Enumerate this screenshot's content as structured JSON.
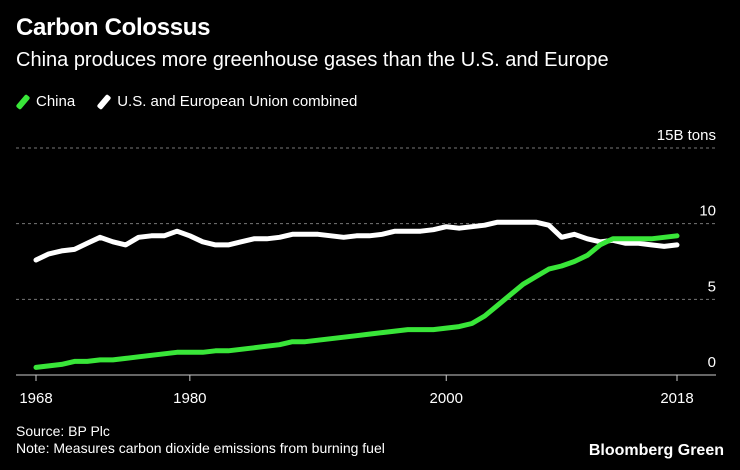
{
  "header": {
    "title": "Carbon Colossus",
    "subtitle": "China produces more greenhouse gases than the U.S. and Europe"
  },
  "footer": {
    "source": "Source: BP Plc",
    "note": "Note: Measures carbon dioxide emissions from burning fuel",
    "brand": "Bloomberg Green"
  },
  "colors": {
    "china": "#39e639",
    "us_eu": "#ffffff",
    "grid": "#777777",
    "background": "#000000"
  },
  "chart_data": {
    "type": "line",
    "title": "Carbon Colossus",
    "subtitle": "China produces more greenhouse gases than the U.S. and Europe",
    "xlabel": "",
    "ylabel": "",
    "xlim": [
      1968,
      2018
    ],
    "ylim": [
      0,
      15
    ],
    "x_ticks": [
      {
        "value": 1968,
        "label": "1968"
      },
      {
        "value": 1980,
        "label": "1980"
      },
      {
        "value": 2000,
        "label": "2000"
      },
      {
        "value": 2018,
        "label": "2018"
      }
    ],
    "y_ticks": [
      {
        "value": 0,
        "label": "0"
      },
      {
        "value": 5,
        "label": "5"
      },
      {
        "value": 10,
        "label": "10"
      },
      {
        "value": 15,
        "label": "15B tons"
      }
    ],
    "grid": true,
    "x": [
      1968,
      1969,
      1970,
      1971,
      1972,
      1973,
      1974,
      1975,
      1976,
      1977,
      1978,
      1979,
      1980,
      1981,
      1982,
      1983,
      1984,
      1985,
      1986,
      1987,
      1988,
      1989,
      1990,
      1991,
      1992,
      1993,
      1994,
      1995,
      1996,
      1997,
      1998,
      1999,
      2000,
      2001,
      2002,
      2003,
      2004,
      2005,
      2006,
      2007,
      2008,
      2009,
      2010,
      2011,
      2012,
      2013,
      2014,
      2015,
      2016,
      2017,
      2018
    ],
    "series": [
      {
        "name": "China",
        "color": "#39e639",
        "values": [
          0.5,
          0.6,
          0.7,
          0.9,
          0.9,
          1.0,
          1.0,
          1.1,
          1.2,
          1.3,
          1.4,
          1.5,
          1.5,
          1.5,
          1.6,
          1.6,
          1.7,
          1.8,
          1.9,
          2.0,
          2.2,
          2.2,
          2.3,
          2.4,
          2.5,
          2.6,
          2.7,
          2.8,
          2.9,
          3.0,
          3.0,
          3.0,
          3.1,
          3.2,
          3.4,
          3.9,
          4.6,
          5.3,
          6.0,
          6.5,
          7.0,
          7.2,
          7.5,
          7.9,
          8.6,
          9.0,
          9.0,
          9.0,
          9.0,
          9.1,
          9.2
        ]
      },
      {
        "name": "U.S. and European Union combined",
        "color": "#ffffff",
        "values": [
          7.6,
          8.0,
          8.2,
          8.3,
          8.7,
          9.1,
          8.8,
          8.6,
          9.1,
          9.2,
          9.2,
          9.5,
          9.2,
          8.8,
          8.6,
          8.6,
          8.8,
          9.0,
          9.0,
          9.1,
          9.3,
          9.3,
          9.3,
          9.2,
          9.1,
          9.2,
          9.2,
          9.3,
          9.5,
          9.5,
          9.5,
          9.6,
          9.8,
          9.7,
          9.8,
          9.9,
          10.1,
          10.1,
          10.1,
          10.1,
          9.9,
          9.1,
          9.3,
          9.0,
          8.8,
          8.9,
          8.7,
          8.7,
          8.6,
          8.5,
          8.6
        ]
      }
    ],
    "legend": "top-left"
  }
}
